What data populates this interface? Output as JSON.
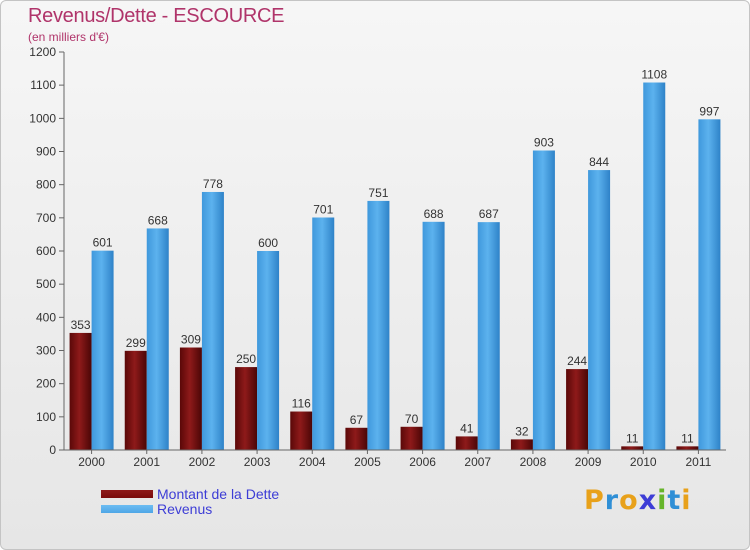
{
  "chart_data": {
    "type": "bar",
    "title": "Revenus/Dette - ESCOURCE",
    "subtitle": "(en milliers d'€)",
    "categories": [
      "2000",
      "2001",
      "2002",
      "2003",
      "2004",
      "2005",
      "2006",
      "2007",
      "2008",
      "2009",
      "2010",
      "2011"
    ],
    "series": [
      {
        "name": "Montant de la Dette",
        "color": "#7a0c0c",
        "values": [
          353,
          299,
          309,
          250,
          116,
          67,
          70,
          41,
          32,
          244,
          11,
          11
        ]
      },
      {
        "name": "Revenus",
        "color": "#4ea6e6",
        "values": [
          601,
          668,
          778,
          600,
          701,
          751,
          688,
          687,
          903,
          844,
          1108,
          997
        ]
      }
    ],
    "ylim": [
      0,
      1200
    ],
    "yticks": [
      0,
      100,
      200,
      300,
      400,
      500,
      600,
      700,
      800,
      900,
      1000,
      1100,
      1200
    ],
    "grid": false,
    "legend_position": "bottom-left",
    "data_labels": true
  },
  "logo": {
    "text": "Proxiti",
    "letters": [
      "P",
      "r",
      "o",
      "x",
      "i",
      "t",
      "i"
    ],
    "colors": [
      "#e8a11a",
      "#2f8fd6",
      "#e8a11a",
      "#3d3dd6",
      "#66b52a",
      "#2f8fd6",
      "#e8a11a"
    ]
  }
}
